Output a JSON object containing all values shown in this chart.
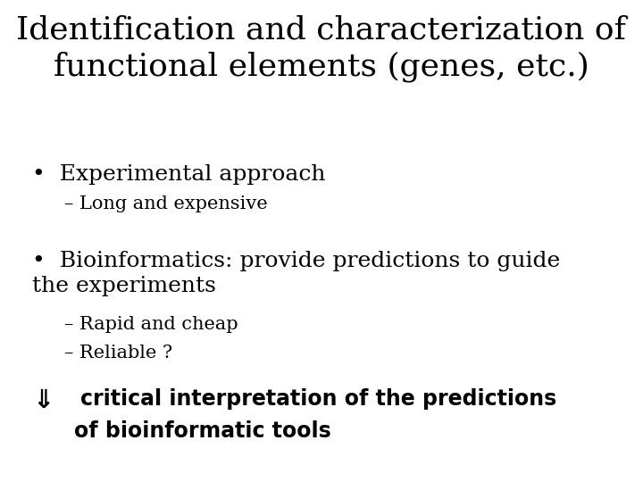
{
  "background_color": "#ffffff",
  "title_line1": "Identification and characterization of",
  "title_line2": "functional elements (genes, etc.)",
  "title_fontsize": 26,
  "title_color": "#000000",
  "bullet1_text": "Experimental approach",
  "bullet1_fontsize": 18,
  "sub1_text": "– Long and expensive",
  "sub1_fontsize": 15,
  "bullet2_text": "Bioinformatics: provide predictions to guide\nthe experiments",
  "bullet2_fontsize": 18,
  "sub2a_text": "– Rapid and cheap",
  "sub2a_fontsize": 15,
  "sub2b_text": "– Reliable ?",
  "sub2b_fontsize": 15,
  "arrow_fontsize": 17,
  "text_color": "#000000",
  "font_family": "DejaVu Serif",
  "bold_font_family": "DejaVu Sans",
  "indent_bullet": 0.05,
  "indent_sub": 0.1,
  "indent_arrow": 0.05,
  "indent_arrow_text": 0.125
}
